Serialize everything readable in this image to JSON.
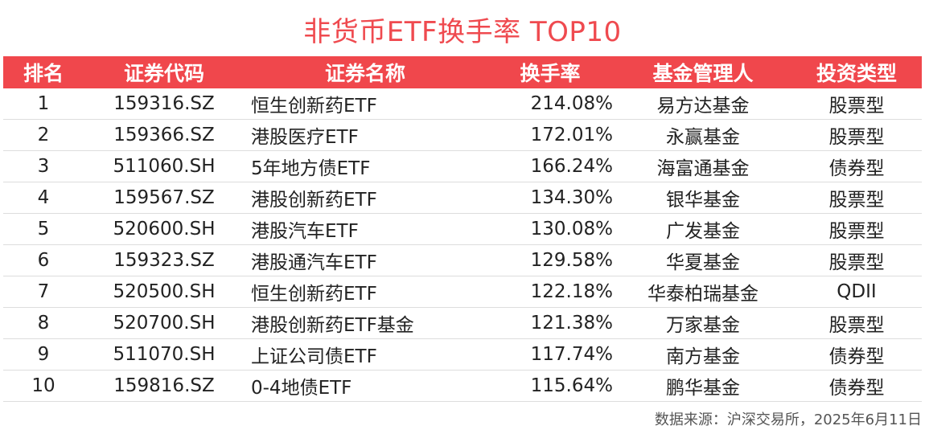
{
  "title": "非货币ETF换手率 TOP10",
  "columns": [
    "排名",
    "证券代码",
    "证券名称",
    "换手率",
    "基金管理人",
    "投资类型"
  ],
  "rows": [
    [
      "1",
      "159316.SZ",
      "恒生创新药ETF",
      "214.08%",
      "易方达基金",
      "股票型"
    ],
    [
      "2",
      "159366.SZ",
      "港股医疗ETF",
      "172.01%",
      "永赢基金",
      "股票型"
    ],
    [
      "3",
      "511060.SH",
      "5年地方债ETF",
      "166.24%",
      "海富通基金",
      "债券型"
    ],
    [
      "4",
      "159567.SZ",
      "港股创新药ETF",
      "134.30%",
      "银华基金",
      "股票型"
    ],
    [
      "5",
      "520600.SH",
      "港股汽车ETF",
      "130.08%",
      "广发基金",
      "股票型"
    ],
    [
      "6",
      "159323.SZ",
      "港股通汽车ETF",
      "129.58%",
      "华夏基金",
      "股票型"
    ],
    [
      "7",
      "520500.SH",
      "恒生创新药ETF",
      "122.18%",
      "华泰柏瑞基金",
      "QDII"
    ],
    [
      "8",
      "520700.SH",
      "港股创新药ETF基金",
      "121.38%",
      "万家基金",
      "股票型"
    ],
    [
      "9",
      "511070.SH",
      "上证公司债ETF",
      "117.74%",
      "南方基金",
      "债券型"
    ],
    [
      "10",
      "159816.SZ",
      "0-4地债ETF",
      "115.64%",
      "鹏华基金",
      "债券型"
    ]
  ],
  "source": "数据来源：沪深交易所，2025年6月11日",
  "colors": {
    "accent": "#f0474c",
    "title": "#ef4a4f"
  },
  "chart_data": {
    "type": "table",
    "title": "非货币ETF换手率 TOP10",
    "columns": [
      "排名",
      "证券代码",
      "证券名称",
      "换手率",
      "基金管理人",
      "投资类型"
    ],
    "rows": [
      [
        1,
        "159316.SZ",
        "恒生创新药ETF",
        "214.08%",
        "易方达基金",
        "股票型"
      ],
      [
        2,
        "159366.SZ",
        "港股医疗ETF",
        "172.01%",
        "永赢基金",
        "股票型"
      ],
      [
        3,
        "511060.SH",
        "5年地方债ETF",
        "166.24%",
        "海富通基金",
        "债券型"
      ],
      [
        4,
        "159567.SZ",
        "港股创新药ETF",
        "134.30%",
        "银华基金",
        "股票型"
      ],
      [
        5,
        "520600.SH",
        "港股汽车ETF",
        "130.08%",
        "广发基金",
        "股票型"
      ],
      [
        6,
        "159323.SZ",
        "港股通汽车ETF",
        "129.58%",
        "华夏基金",
        "股票型"
      ],
      [
        7,
        "520500.SH",
        "恒生创新药ETF",
        "122.18%",
        "华泰柏瑞基金",
        "QDII"
      ],
      [
        8,
        "520700.SH",
        "港股创新药ETF基金",
        "121.38%",
        "万家基金",
        "股票型"
      ],
      [
        9,
        "511070.SH",
        "上证公司债ETF",
        "117.74%",
        "南方基金",
        "债券型"
      ],
      [
        10,
        "159816.SZ",
        "0-4地债ETF",
        "115.64%",
        "鹏华基金",
        "债券型"
      ]
    ]
  }
}
